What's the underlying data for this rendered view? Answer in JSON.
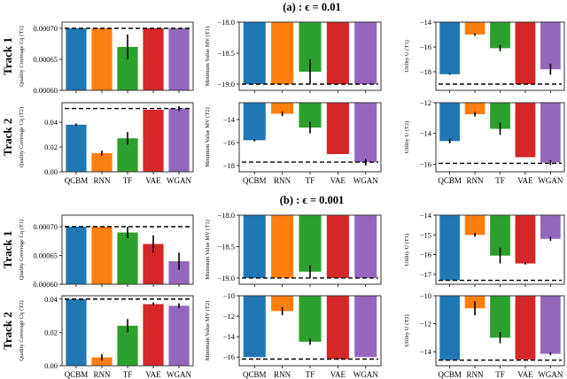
{
  "colors": [
    "#1f77b4",
    "#ff7f0e",
    "#2ca02c",
    "#d62728",
    "#9467bd"
  ],
  "chart_data": {
    "type": "bar",
    "categories": [
      "QCBM",
      "RNN",
      "TF",
      "VAE",
      "WGAN"
    ],
    "sections": [
      {
        "title": "(a) : ϵ = 0.01",
        "rows": [
          "Track 1",
          "Track 2"
        ]
      },
      {
        "title": "(b) : ϵ = 0.001",
        "rows": [
          "Track 1",
          "Track 2"
        ]
      }
    ],
    "panels": [
      {
        "section": 0,
        "row": 0,
        "col": 0,
        "ylabel": "Quality Coverage Cq (T1)",
        "ylim": [
          0.0006,
          0.00071
        ],
        "ticks": [
          0.0006,
          0.00065,
          0.0007
        ],
        "tick_labels": [
          "0.00060",
          "0.00065",
          "0.00070"
        ],
        "values": [
          0.0007,
          0.0007,
          0.00067,
          0.0007,
          0.0007
        ],
        "errors": [
          0,
          0,
          2e-05,
          0,
          0
        ],
        "reference": 0.0007
      },
      {
        "section": 0,
        "row": 0,
        "col": 1,
        "ylabel": "Minimum Value MV (T1)",
        "ylim": [
          -19.1,
          -18.0
        ],
        "ticks": [
          -19,
          -18.5,
          -18
        ],
        "tick_labels": [
          "−19.0",
          "−18.5",
          "−18.0"
        ],
        "values": [
          -19,
          -19,
          -18.8,
          -19,
          -19
        ],
        "errors": [
          0,
          0,
          0.2,
          0,
          0
        ],
        "reference": -19.0
      },
      {
        "section": 0,
        "row": 0,
        "col": 2,
        "ylabel": "Utility U (T1)",
        "ylim": [
          -19.5,
          -14
        ],
        "ticks": [
          -18,
          -16,
          -14
        ],
        "tick_labels": [
          "−18",
          "−16",
          "−14"
        ],
        "values": [
          -18.2,
          -15.0,
          -16.1,
          -19.0,
          -17.8
        ],
        "errors": [
          0.05,
          0.1,
          0.25,
          0,
          0.45
        ],
        "reference": -19.0
      },
      {
        "section": 0,
        "row": 1,
        "col": 0,
        "ylabel": "Quality Coverage Cq (T2)",
        "ylim": [
          0,
          0.0557
        ],
        "ticks": [
          0,
          0.02,
          0.04
        ],
        "tick_labels": [
          "0.00",
          "0.02",
          "0.04"
        ],
        "values": [
          0.038,
          0.015,
          0.027,
          0.05,
          0.051
        ],
        "errors": [
          0.001,
          0.002,
          0.005,
          0,
          0.002
        ],
        "reference": 0.051
      },
      {
        "section": 0,
        "row": 1,
        "col": 1,
        "ylabel": "Minimum Value MV (T2)",
        "ylim": [
          -18.54,
          -12.54
        ],
        "ticks": [
          -18,
          -16,
          -14
        ],
        "tick_labels": [
          "−18",
          "−16",
          "−14"
        ],
        "values": [
          -15.8,
          -13.5,
          -14.7,
          -17.0,
          -17.7
        ],
        "errors": [
          0.1,
          0.2,
          0.5,
          0,
          0.3
        ],
        "reference": -17.7
      },
      {
        "section": 0,
        "row": 1,
        "col": 2,
        "ylabel": "Utility U (T2)",
        "ylim": [
          -16.5,
          -12
        ],
        "ticks": [
          -16,
          -14,
          -12
        ],
        "tick_labels": [
          "−16",
          "−14",
          "−12"
        ],
        "values": [
          -14.5,
          -12.75,
          -13.7,
          -15.55,
          -15.9
        ],
        "errors": [
          0.15,
          0.15,
          0.4,
          0,
          0.15
        ],
        "reference": -15.95
      },
      {
        "section": 1,
        "row": 0,
        "col": 0,
        "ylabel": "Quality Coverage Cq (T1)",
        "ylim": [
          0.0006,
          0.00072
        ],
        "ticks": [
          0.0006,
          0.00065,
          0.0007
        ],
        "tick_labels": [
          "0.00060",
          "0.00065",
          "0.00070"
        ],
        "values": [
          0.0007,
          0.0007,
          0.00069,
          0.00067,
          0.00064
        ],
        "errors": [
          0,
          0,
          1e-05,
          1.5e-05,
          1.5e-05
        ],
        "reference": 0.0007
      },
      {
        "section": 1,
        "row": 0,
        "col": 1,
        "ylabel": "Minimum Value MV (T1)",
        "ylim": [
          -19.1,
          -18.0
        ],
        "ticks": [
          -19,
          -18.5,
          -18
        ],
        "tick_labels": [
          "−19.0",
          "−18.5",
          "−18.0"
        ],
        "values": [
          -19,
          -19,
          -18.9,
          -19,
          -19
        ],
        "errors": [
          0,
          0,
          0.1,
          0,
          0
        ],
        "reference": -19.0
      },
      {
        "section": 1,
        "row": 0,
        "col": 2,
        "ylabel": "Utility U (T1)",
        "ylim": [
          -17.5,
          -14
        ],
        "ticks": [
          -17,
          -16,
          -15,
          -14
        ],
        "tick_labels": [
          "−17",
          "−16",
          "−15",
          "−14"
        ],
        "values": [
          -17.3,
          -15.0,
          -16.05,
          -16.45,
          -15.2
        ],
        "errors": [
          0,
          0.1,
          0.4,
          0.05,
          0.1
        ],
        "reference": -17.3
      },
      {
        "section": 1,
        "row": 1,
        "col": 0,
        "ylabel": "Quality Coverage Cq (T2)",
        "ylim": [
          0,
          0.042
        ],
        "ticks": [
          0,
          0.02,
          0.04
        ],
        "tick_labels": [
          "0.00",
          "0.02",
          "0.04"
        ],
        "values": [
          0.04,
          0.005,
          0.024,
          0.037,
          0.036
        ],
        "errors": [
          0,
          0.002,
          0.004,
          0.001,
          0.0015
        ],
        "reference": 0.04
      },
      {
        "section": 1,
        "row": 1,
        "col": 1,
        "ylabel": "Minimum Value MV (T2)",
        "ylim": [
          -16.85,
          -10
        ],
        "ticks": [
          -16,
          -14,
          -12,
          -10
        ],
        "tick_labels": [
          "−16",
          "−14",
          "−12",
          "−10"
        ],
        "values": [
          -16.0,
          -11.5,
          -14.5,
          -16.2,
          -16.0
        ],
        "errors": [
          0,
          0.4,
          0.3,
          0.1,
          0
        ],
        "reference": -16.2
      },
      {
        "section": 1,
        "row": 1,
        "col": 2,
        "ylabel": "Utility U (T2)",
        "ylim": [
          -15.0,
          -10
        ],
        "ticks": [
          -14,
          -12,
          -10
        ],
        "tick_labels": [
          "−14",
          "−12",
          "−10"
        ],
        "values": [
          -14.6,
          -10.9,
          -13.0,
          -14.55,
          -14.15
        ],
        "errors": [
          0,
          0.5,
          0.4,
          0,
          0.1
        ],
        "reference": -14.6
      }
    ]
  }
}
